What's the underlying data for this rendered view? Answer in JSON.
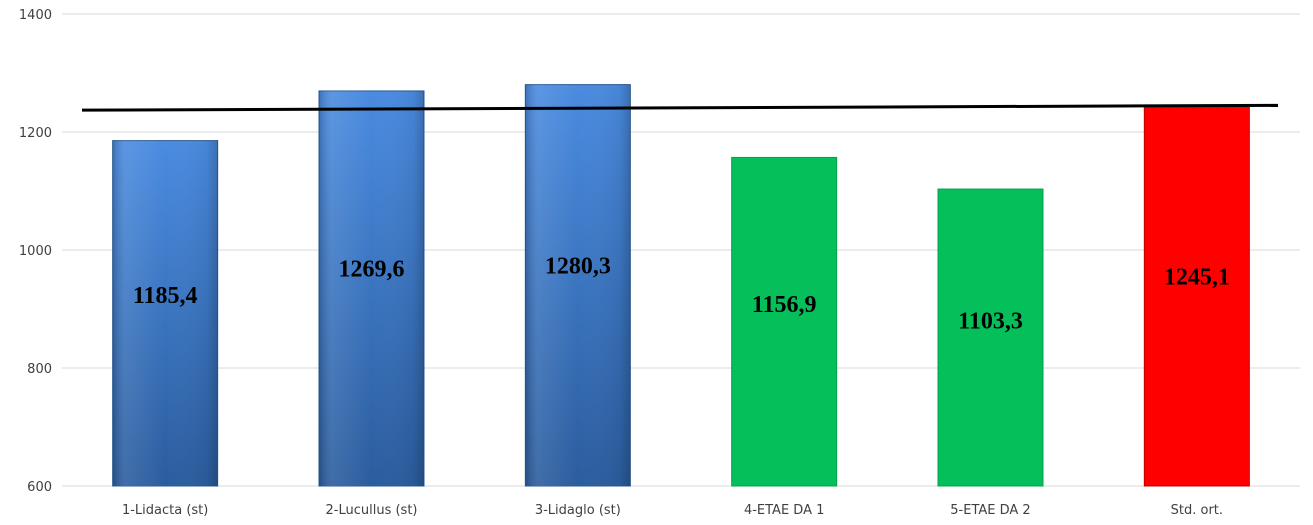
{
  "chart_data": {
    "type": "bar",
    "title": "",
    "xlabel": "",
    "ylabel": "",
    "ylim": [
      600,
      1400
    ],
    "yticks": [
      600,
      800,
      1000,
      1200,
      1400
    ],
    "grid": true,
    "categories": [
      "1-Lidacta (st)",
      "2-Lucullus (st)",
      "3-Lidaglo (st)",
      "4-ETAE DA 1",
      "5-ETAE DA 2",
      "Std. ort."
    ],
    "values": [
      1185.4,
      1269.6,
      1280.3,
      1156.9,
      1103.3,
      1245.1
    ],
    "value_labels": [
      "1185,4",
      "1269,6",
      "1280,3",
      "1156,9",
      "1103,3",
      "1245,1"
    ],
    "bar_colors": [
      "#3f7fce",
      "#3f7fce",
      "#3f7fce",
      "#05c05a",
      "#05c05a",
      "#ff0000"
    ],
    "reference_line": {
      "color": "#000000",
      "start_value": 1237,
      "end_value": 1245.1
    }
  }
}
